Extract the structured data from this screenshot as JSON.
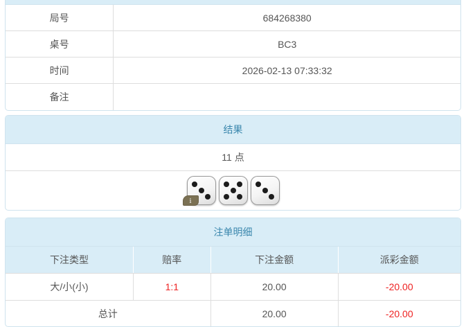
{
  "colors": {
    "header_bg": "#d9edf7",
    "header_text": "#3a87ad",
    "panel_border": "#cfe3ee",
    "row_border": "#dddddd",
    "body_text": "#555555",
    "negative_text": "#ee2222",
    "info_badge_bg": "#7b7154"
  },
  "info_table": {
    "rows": [
      {
        "label": "局号",
        "value": "684268380"
      },
      {
        "label": "桌号",
        "value": "BC3"
      },
      {
        "label": "时间",
        "value": "2026-02-13 07:33:32"
      },
      {
        "label": "备注",
        "value": ""
      }
    ]
  },
  "result_panel": {
    "title": "结果",
    "points": "11 点",
    "dice": [
      3,
      5,
      3
    ],
    "info_badge": "i"
  },
  "bets_panel": {
    "title": "注单明细",
    "columns": [
      "下注类型",
      "赔率",
      "下注金额",
      "派彩金额"
    ],
    "rows": [
      {
        "type": "大/小(小)",
        "odds": "1:1",
        "bet": "20.00",
        "payout": "-20.00"
      }
    ],
    "total": {
      "label": "总计",
      "bet": "20.00",
      "payout": "-20.00"
    }
  }
}
